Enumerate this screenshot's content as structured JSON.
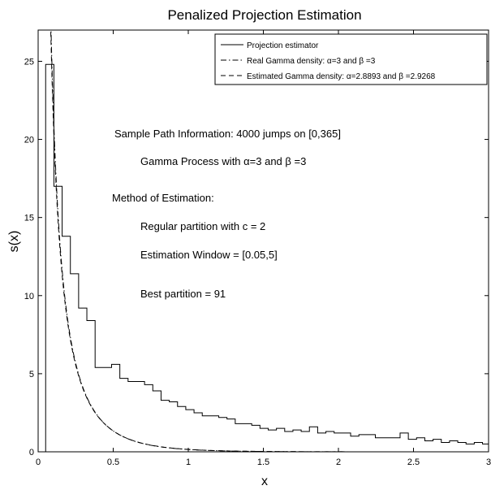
{
  "chart_data": {
    "type": "line",
    "title": "Penalized Projection Estimation",
    "xlabel": "x",
    "ylabel": "s(x)",
    "xlim": [
      0,
      3
    ],
    "ylim": [
      0,
      27
    ],
    "xticks": [
      "0",
      "0.5",
      "1",
      "1.5",
      "2",
      "2.5",
      "3"
    ],
    "yticks": [
      "0",
      "5",
      "10",
      "15",
      "20",
      "25"
    ],
    "grid": false,
    "legend_position": "top-right",
    "series": [
      {
        "name": "Projection estimator",
        "style": "solid-step",
        "window": [
          0.05,
          5
        ],
        "bin_width": 0.0549,
        "values": [
          24.8,
          17.0,
          13.8,
          11.4,
          9.2,
          8.4,
          5.4,
          5.4,
          5.6,
          4.7,
          4.5,
          4.5,
          4.3,
          3.9,
          3.3,
          3.2,
          2.9,
          2.7,
          2.5,
          2.3,
          2.3,
          2.2,
          2.1,
          1.8,
          1.8,
          1.7,
          1.5,
          1.4,
          1.5,
          1.3,
          1.4,
          1.3,
          1.6,
          1.2,
          1.3,
          1.2,
          1.2,
          1.0,
          1.1,
          1.1,
          0.9,
          0.9,
          0.9,
          1.2,
          0.8,
          0.9,
          0.7,
          0.8,
          0.6,
          0.7,
          0.6,
          0.5,
          0.6,
          0.5,
          0.5,
          0.45
        ]
      },
      {
        "name": "Real Gamma density: α=3 and β =3",
        "style": "dash-dot",
        "function": "alpha * exp(-beta * x) / x",
        "alpha": 3,
        "beta": 3
      },
      {
        "name": "Estimated Gamma density: α=2.8893 and β =2.9268",
        "style": "dashed",
        "function": "alpha * exp(-beta * x) / x",
        "alpha": 2.8893,
        "beta": 2.9268
      }
    ],
    "annotations": [
      "Sample Path Information: 4000 jumps on [0,365]",
      "Gamma Process with α=3 and β =3",
      "Method of Estimation:",
      "Regular partition with c = 2",
      "Estimation Window = [0.05,5]",
      "Best partition = 91"
    ]
  }
}
